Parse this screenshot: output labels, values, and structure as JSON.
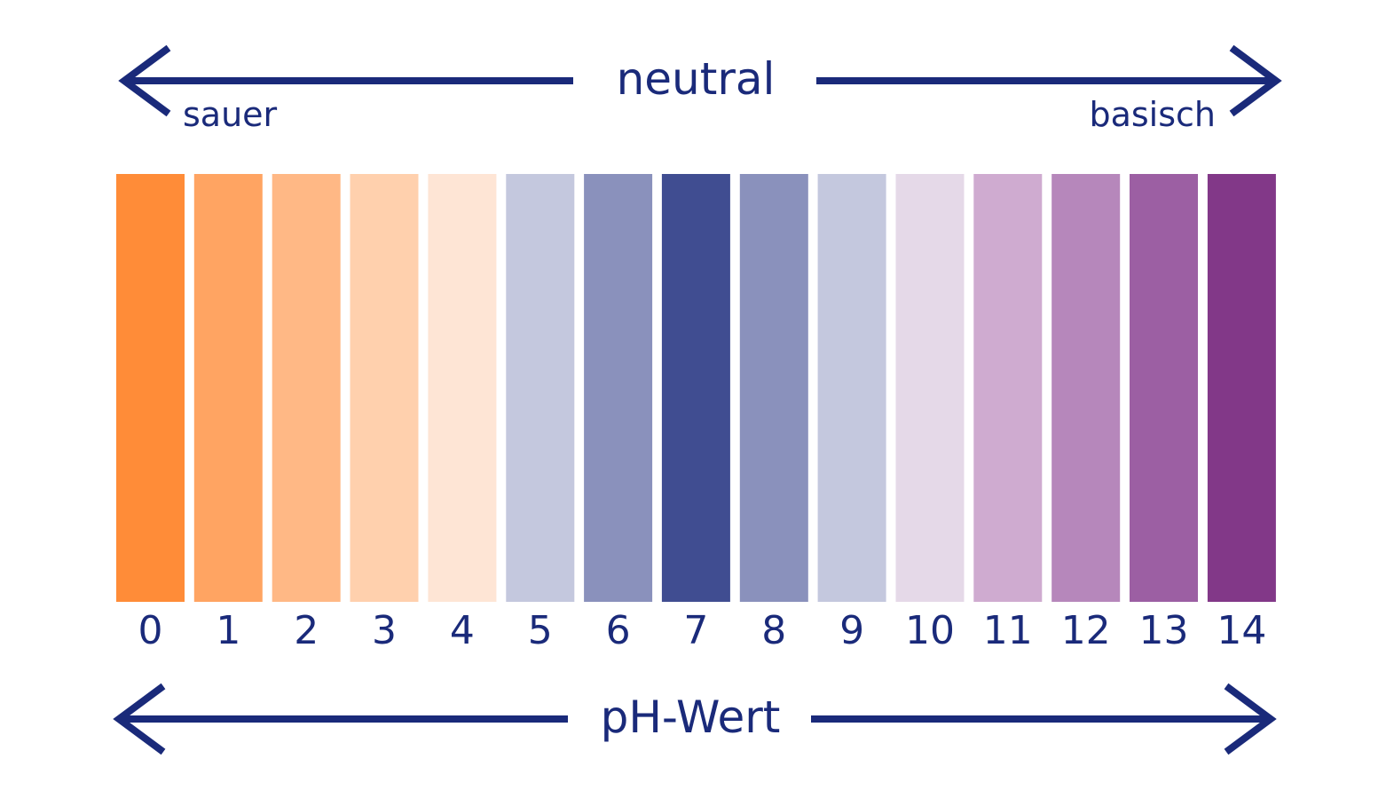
{
  "top_axis": {
    "center_label": "neutral",
    "left_label": "sauer",
    "right_label": "basisch"
  },
  "bottom_axis": {
    "label": "pH-Wert"
  },
  "scale": [
    {
      "value": "0",
      "color": "#ff8c38"
    },
    {
      "value": "1",
      "color": "#ffa462"
    },
    {
      "value": "2",
      "color": "#ffb885"
    },
    {
      "value": "3",
      "color": "#ffd0ad"
    },
    {
      "value": "4",
      "color": "#fee5d5"
    },
    {
      "value": "5",
      "color": "#c4c8de"
    },
    {
      "value": "6",
      "color": "#8a91bc"
    },
    {
      "value": "7",
      "color": "#404d91"
    },
    {
      "value": "8",
      "color": "#8a91bc"
    },
    {
      "value": "9",
      "color": "#c4c8de"
    },
    {
      "value": "10",
      "color": "#e5d9e8"
    },
    {
      "value": "11",
      "color": "#cfabd0"
    },
    {
      "value": "12",
      "color": "#b687bb"
    },
    {
      "value": "13",
      "color": "#9c5fa3"
    },
    {
      "value": "14",
      "color": "#823888"
    }
  ],
  "colors": {
    "text_and_arrows": "#1a2a7a"
  }
}
